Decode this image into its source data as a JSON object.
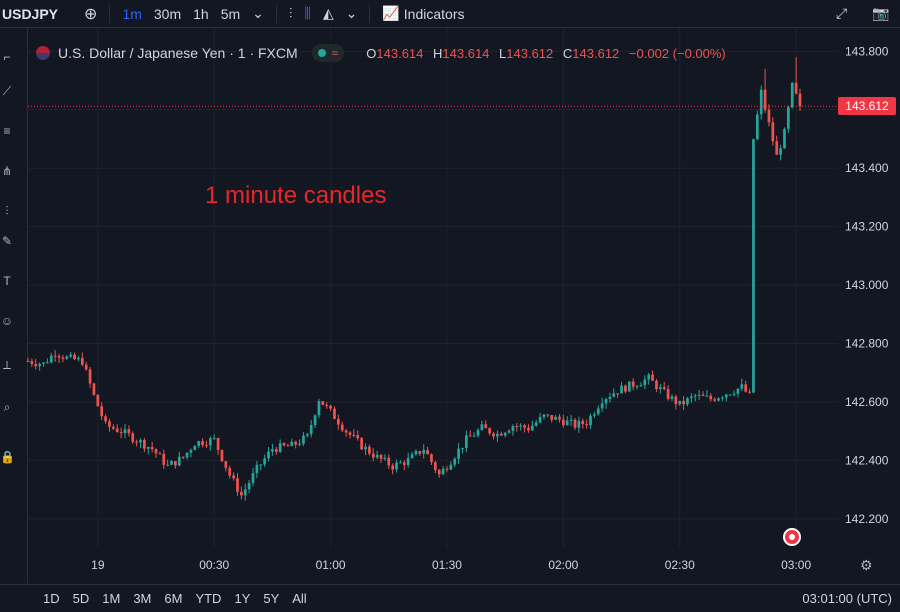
{
  "toolbar": {
    "symbol": "USDJPY",
    "timeframes": [
      "1m",
      "30m",
      "1h",
      "5m"
    ],
    "indicators": "Indicators"
  },
  "legend": {
    "title": "U.S. Dollar / Japanese Yen · 1 · FXCM",
    "O": "143.614",
    "H": "143.614",
    "L": "143.612",
    "C": "143.612",
    "change": "−0.002 (−0.00%)"
  },
  "annotation": "1 minute candles",
  "last_price_tag": "143.612",
  "bottombar": {
    "ranges": [
      "1D",
      "5D",
      "1M",
      "3M",
      "6M",
      "YTD",
      "1Y",
      "5Y",
      "All"
    ],
    "clock": "03:01:00 (UTC)"
  },
  "colors": {
    "up": "#26a69a",
    "down": "#ef5350",
    "bg": "#131722",
    "grid": "#232632",
    "accent": "#2962ff"
  },
  "chart_data": {
    "type": "candlestick",
    "title": "U.S. Dollar / Japanese Yen · 1 · FXCM",
    "ylim": [
      142.1,
      143.88
    ],
    "yticks": [
      142.2,
      142.4,
      142.6,
      142.8,
      143.0,
      143.2,
      143.4,
      143.6,
      143.8
    ],
    "ytick_labels": [
      "142.200",
      "142.400",
      "142.600",
      "142.800",
      "143.000",
      "143.200",
      "143.400",
      "143.600",
      "143.800"
    ],
    "xtick_labels": [
      "19",
      "00:30",
      "01:00",
      "01:30",
      "02:00",
      "02:30",
      "03:00"
    ],
    "xtick_minutes": [
      0,
      30,
      60,
      90,
      120,
      150,
      180
    ],
    "last_price": 143.612,
    "time_range_minutes": [
      -18,
      181
    ],
    "close_path": [
      {
        "t": -18,
        "c": 142.74
      },
      {
        "t": -14,
        "c": 142.73
      },
      {
        "t": -11,
        "c": 142.77
      },
      {
        "t": -8,
        "c": 142.75
      },
      {
        "t": -4,
        "c": 142.74
      },
      {
        "t": -1,
        "c": 142.62
      },
      {
        "t": 2,
        "c": 142.52
      },
      {
        "t": 6,
        "c": 142.5
      },
      {
        "t": 10,
        "c": 142.47
      },
      {
        "t": 14,
        "c": 142.44
      },
      {
        "t": 18,
        "c": 142.38
      },
      {
        "t": 22,
        "c": 142.41
      },
      {
        "t": 25,
        "c": 142.46
      },
      {
        "t": 30,
        "c": 142.47
      },
      {
        "t": 34,
        "c": 142.35
      },
      {
        "t": 37,
        "c": 142.28
      },
      {
        "t": 41,
        "c": 142.37
      },
      {
        "t": 45,
        "c": 142.44
      },
      {
        "t": 50,
        "c": 142.45
      },
      {
        "t": 54,
        "c": 142.48
      },
      {
        "t": 57,
        "c": 142.61
      },
      {
        "t": 61,
        "c": 142.55
      },
      {
        "t": 64,
        "c": 142.5
      },
      {
        "t": 68,
        "c": 142.45
      },
      {
        "t": 72,
        "c": 142.41
      },
      {
        "t": 76,
        "c": 142.38
      },
      {
        "t": 80,
        "c": 142.4
      },
      {
        "t": 84,
        "c": 142.44
      },
      {
        "t": 88,
        "c": 142.35
      },
      {
        "t": 91,
        "c": 142.4
      },
      {
        "t": 95,
        "c": 142.47
      },
      {
        "t": 99,
        "c": 142.51
      },
      {
        "t": 103,
        "c": 142.49
      },
      {
        "t": 107,
        "c": 142.52
      },
      {
        "t": 111,
        "c": 142.51
      },
      {
        "t": 115,
        "c": 142.55
      },
      {
        "t": 119,
        "c": 142.54
      },
      {
        "t": 123,
        "c": 142.52
      },
      {
        "t": 126,
        "c": 142.53
      },
      {
        "t": 130,
        "c": 142.61
      },
      {
        "t": 134,
        "c": 142.64
      },
      {
        "t": 138,
        "c": 142.66
      },
      {
        "t": 142,
        "c": 142.68
      },
      {
        "t": 146,
        "c": 142.63
      },
      {
        "t": 150,
        "c": 142.59
      },
      {
        "t": 154,
        "c": 142.62
      },
      {
        "t": 158,
        "c": 142.61
      },
      {
        "t": 162,
        "c": 142.63
      },
      {
        "t": 166,
        "c": 142.65
      },
      {
        "t": 168,
        "c": 142.62
      },
      {
        "t": 169,
        "c": 143.5
      },
      {
        "t": 171,
        "c": 143.66
      },
      {
        "t": 173,
        "c": 143.55
      },
      {
        "t": 175,
        "c": 143.44
      },
      {
        "t": 177,
        "c": 143.52
      },
      {
        "t": 179,
        "c": 143.68
      },
      {
        "t": 181,
        "c": 143.612
      }
    ]
  }
}
